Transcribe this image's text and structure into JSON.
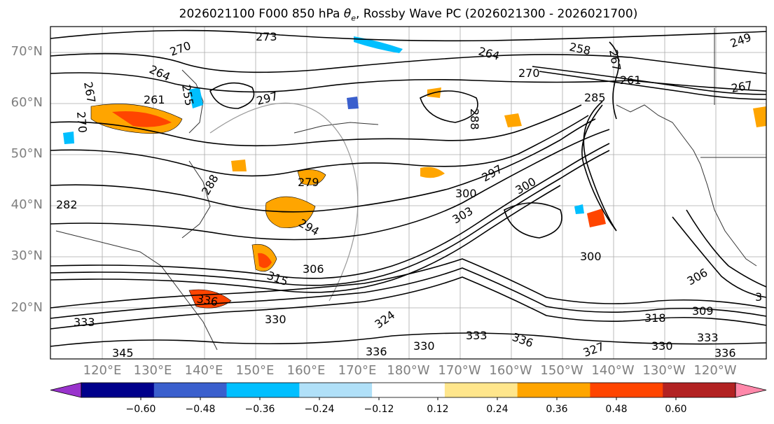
{
  "title": {
    "prefix": "2026021100 F000 850 hPa ",
    "theta": "θ",
    "sub": "e",
    "suffix": ", Rossby Wave PC (2026021300 - 2026021700)"
  },
  "lat_labels": [
    "70°N",
    "60°N",
    "50°N",
    "40°N",
    "30°N",
    "20°N"
  ],
  "lon_labels": [
    "120°E",
    "130°E",
    "140°E",
    "150°E",
    "160°E",
    "170°E",
    "180°W",
    "170°W",
    "160°W",
    "150°W",
    "140°W",
    "130°W",
    "120°W"
  ],
  "contour_labels": [
    "273",
    "270",
    "264",
    "267",
    "261",
    "255",
    "258",
    "264",
    "270",
    "249",
    "285",
    "267",
    "267",
    "270",
    "261",
    "288",
    "297",
    "279",
    "282",
    "288",
    "294",
    "300",
    "297",
    "300",
    "303",
    "306",
    "315",
    "300",
    "336",
    "333",
    "345",
    "336",
    "333",
    "336",
    "330",
    "327",
    "324",
    "318",
    "309",
    "306",
    "330",
    "333",
    "336",
    "330",
    "3"
  ],
  "colorbar": {
    "ticks": [
      "−0.60",
      "−0.48",
      "−0.36",
      "−0.24",
      "−0.12",
      "0.12",
      "0.24",
      "0.36",
      "0.48",
      "0.60"
    ],
    "colors": [
      "#9933cc",
      "#00008b",
      "#3a5fcd",
      "#00bfff",
      "#b0e0f8",
      "#ffffff",
      "#ffe68c",
      "#ffa500",
      "#ff4500",
      "#b22222",
      "#ff88aa"
    ]
  }
}
